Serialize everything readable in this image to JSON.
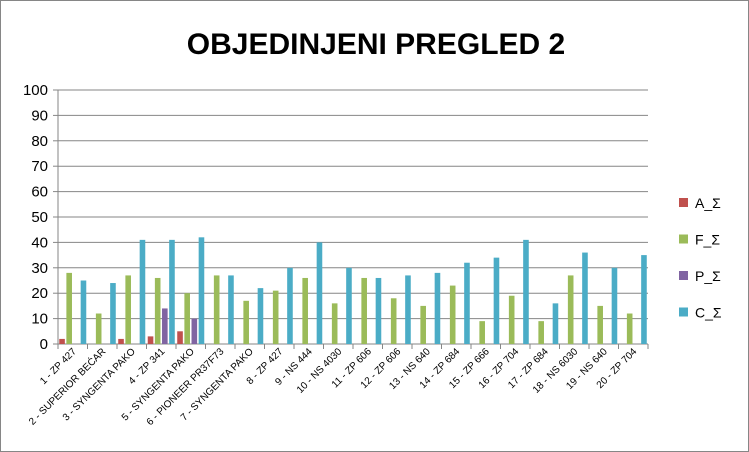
{
  "chart_data": {
    "type": "bar",
    "title": "OBJEDINJENI PREGLED 2",
    "xlabel": "",
    "ylabel": "",
    "ylim": [
      0,
      100
    ],
    "yticks": [
      0,
      10,
      20,
      30,
      40,
      50,
      60,
      70,
      80,
      90,
      100
    ],
    "grid": true,
    "legend_position": "right",
    "categories": [
      "1 - ZP 427",
      "2 - SUPERIOR BEĆAR",
      "3 - SYNGENTA PAKO",
      "4 - ZP 341",
      "5 - SYNGENTA PAKO",
      "6 - PIONEER PR37F73",
      "7 - SYNGENTA PAKO",
      "8 - ZP 427",
      "9 - NS 444",
      "10 - NS 4030",
      "11 - ZP 606",
      "12 - ZP 606",
      "13 - NS 640",
      "14 - ZP 684",
      "15 - ZP 666",
      "16 - ZP 704",
      "17 - ZP 684",
      "18 - NS 6030",
      "19 - NS 640",
      "20 - ZP 704"
    ],
    "series": [
      {
        "name": "A_Σ",
        "color": "#C0504D",
        "values": [
          2,
          0,
          2,
          3,
          5,
          0,
          0,
          0,
          0,
          0,
          0,
          0,
          0,
          0,
          0,
          0,
          0,
          0,
          0,
          0
        ]
      },
      {
        "name": "F_Σ",
        "color": "#9BBB59",
        "values": [
          28,
          12,
          27,
          26,
          20,
          27,
          17,
          21,
          26,
          16,
          26,
          18,
          15,
          23,
          9,
          19,
          9,
          27,
          15,
          12
        ]
      },
      {
        "name": "P_Σ",
        "color": "#8064A2",
        "values": [
          0,
          0,
          0,
          14,
          10,
          0,
          0,
          0,
          0,
          0,
          0,
          0,
          0,
          0,
          0,
          0,
          0,
          0,
          0,
          0
        ]
      },
      {
        "name": "C_Σ",
        "color": "#4BACC6",
        "values": [
          25,
          24,
          41,
          41,
          42,
          27,
          22,
          30,
          40,
          30,
          26,
          27,
          28,
          32,
          34,
          41,
          16,
          36,
          30,
          35
        ]
      }
    ]
  }
}
